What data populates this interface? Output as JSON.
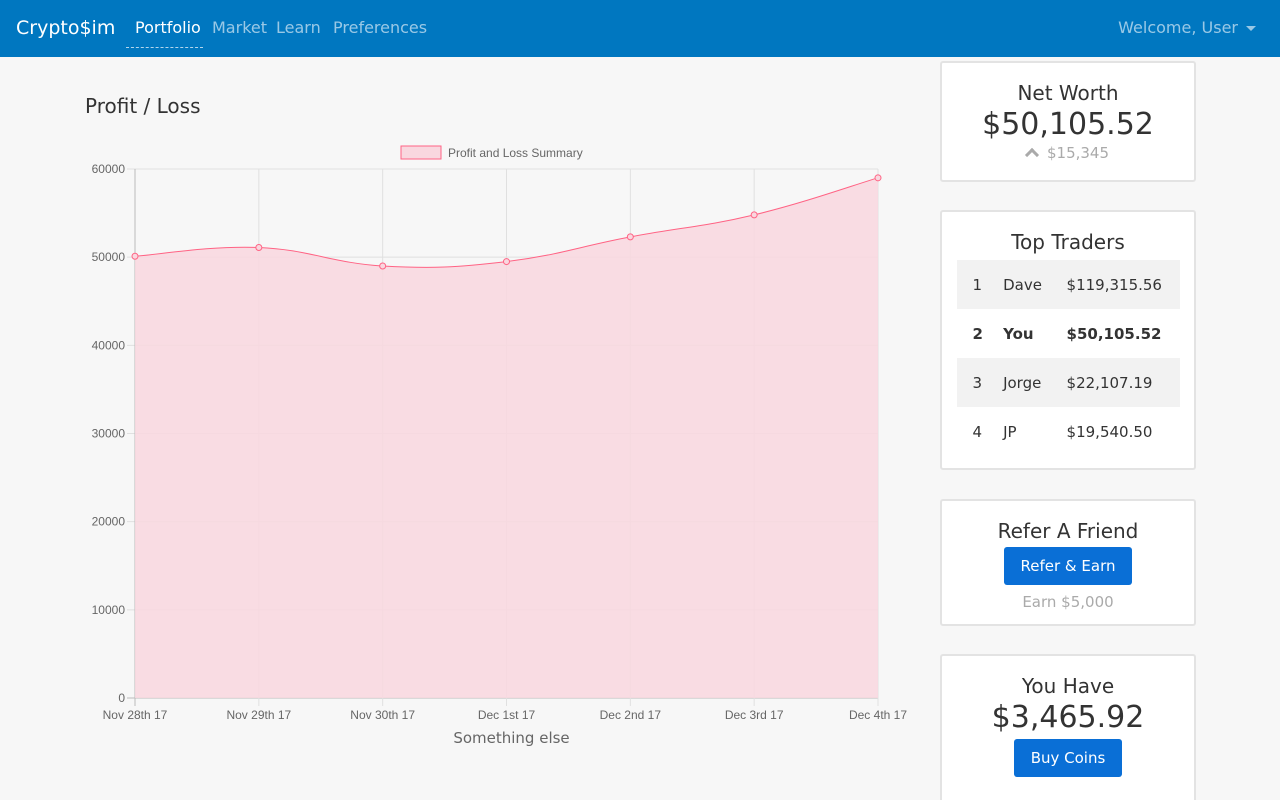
{
  "nav": {
    "brand": "Crypto$im",
    "links": [
      "Portfolio",
      "Market",
      "Learn",
      "Preferences"
    ],
    "user": "Welcome, User"
  },
  "main": {
    "title": "Profit / Loss"
  },
  "chart_data": {
    "type": "area",
    "categories": [
      "Nov 28th 17",
      "Nov 29th 17",
      "Nov 30th 17",
      "Dec 1st 17",
      "Dec 2nd 17",
      "Dec 3rd 17",
      "Dec 4th 17"
    ],
    "series": [
      {
        "name": "Profit and Loss Summary",
        "values": [
          50100,
          51100,
          49000,
          49500,
          52300,
          54800,
          59000
        ]
      }
    ],
    "xlabel": "Something else",
    "ylabel": "",
    "ylim": [
      0,
      60000
    ],
    "yticks": [
      0,
      10000,
      20000,
      30000,
      40000,
      50000,
      60000
    ],
    "grid": true,
    "legend": "top-center",
    "colors": {
      "line": "#ff6384",
      "fill": "#f9d7df"
    }
  },
  "net_worth": {
    "title": "Net Worth",
    "value": "$50,105.52",
    "change": "$15,345"
  },
  "top_traders": {
    "title": "Top Traders",
    "rows": [
      {
        "rank": "1",
        "name": "Dave",
        "value": "$119,315.56"
      },
      {
        "rank": "2",
        "name": "You",
        "value": "$50,105.52"
      },
      {
        "rank": "3",
        "name": "Jorge",
        "value": "$22,107.19"
      },
      {
        "rank": "4",
        "name": "JP",
        "value": "$19,540.50"
      }
    ]
  },
  "refer": {
    "title": "Refer A Friend",
    "button": "Refer & Earn",
    "note": "Earn $5,000"
  },
  "you_have": {
    "title": "You Have",
    "value": "$3,465.92",
    "button": "Buy Coins"
  }
}
